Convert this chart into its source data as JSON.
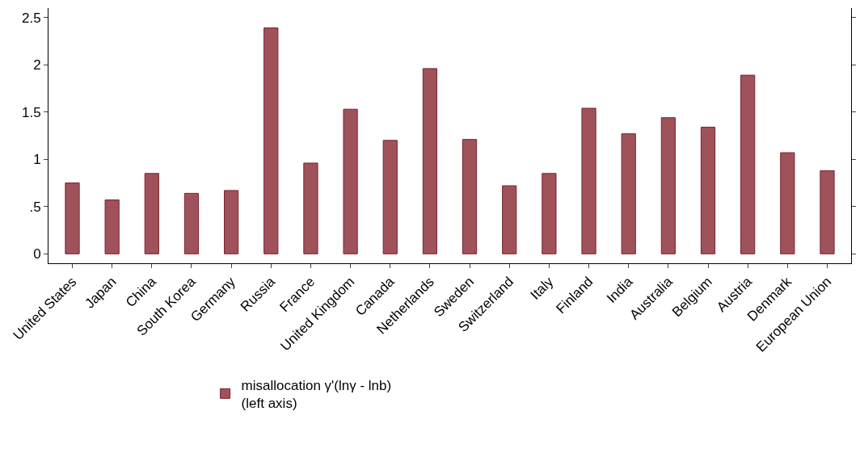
{
  "chart_data": {
    "type": "bar",
    "categories": [
      "United States",
      "Japan",
      "China",
      "South Korea",
      "Germany",
      "Russia",
      "France",
      "United Kingdom",
      "Canada",
      "Netherlands",
      "Sweden",
      "Switzerland",
      "Italy",
      "Finland",
      "India",
      "Australia",
      "Belgium",
      "Austria",
      "Denmark",
      "European Union"
    ],
    "series": [
      {
        "name": "misallocation γ'(lnγ - lnb)\n(left axis)",
        "color": "#a0525a",
        "values": [
          0.75,
          0.57,
          0.85,
          0.64,
          0.67,
          2.39,
          0.96,
          1.53,
          1.2,
          1.96,
          1.21,
          0.72,
          0.85,
          1.54,
          1.27,
          1.44,
          1.34,
          1.89,
          1.07,
          0.88
        ]
      }
    ],
    "ylim": [
      -0.1,
      2.6
    ],
    "yticks": [
      0,
      {
        "value": 0.5,
        "label": ".5"
      },
      1,
      1.5,
      2,
      2.5
    ],
    "legend": "bottom"
  }
}
